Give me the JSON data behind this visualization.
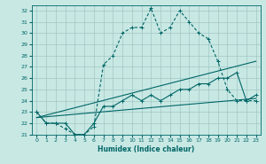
{
  "xlabel": "Humidex (Indice chaleur)",
  "bg_color": "#c8e8e4",
  "grid_color": "#a0c8c4",
  "line_color": "#006666",
  "xlim": [
    -0.5,
    23.5
  ],
  "ylim": [
    21,
    32.5
  ],
  "yticks": [
    21,
    22,
    23,
    24,
    25,
    26,
    27,
    28,
    29,
    30,
    31,
    32
  ],
  "xticks": [
    0,
    1,
    2,
    3,
    4,
    5,
    6,
    7,
    8,
    9,
    10,
    11,
    12,
    13,
    14,
    15,
    16,
    17,
    18,
    19,
    20,
    21,
    22,
    23
  ],
  "line1_x": [
    0,
    1,
    2,
    3,
    4,
    5,
    6,
    7,
    8,
    9,
    10,
    11,
    12,
    13,
    14,
    15,
    16,
    17,
    18,
    19,
    20,
    21,
    22,
    23
  ],
  "line1_y": [
    23,
    22,
    22,
    21.5,
    21,
    21,
    21.7,
    27.2,
    28,
    30,
    30.5,
    30.5,
    32.2,
    30,
    30.5,
    32,
    31,
    30,
    29.5,
    27.5,
    25,
    24,
    24,
    24
  ],
  "line2_x": [
    0,
    1,
    2,
    3,
    4,
    5,
    6,
    7,
    8,
    9,
    10,
    11,
    12,
    13,
    14,
    15,
    16,
    17,
    18,
    19,
    20,
    21,
    22,
    23
  ],
  "line2_y": [
    23,
    22,
    22,
    22,
    21,
    21,
    22,
    23.5,
    23.5,
    24,
    24.5,
    24,
    24.5,
    24,
    24.5,
    25,
    25,
    25.5,
    25.5,
    26,
    26,
    26.5,
    24,
    24.5
  ],
  "line3_x": [
    0,
    23
  ],
  "line3_y": [
    22.5,
    24.2
  ],
  "line4_x": [
    0,
    23
  ],
  "line4_y": [
    22.5,
    27.5
  ],
  "figwidth": 3.0,
  "figheight": 1.85,
  "dpi": 100
}
